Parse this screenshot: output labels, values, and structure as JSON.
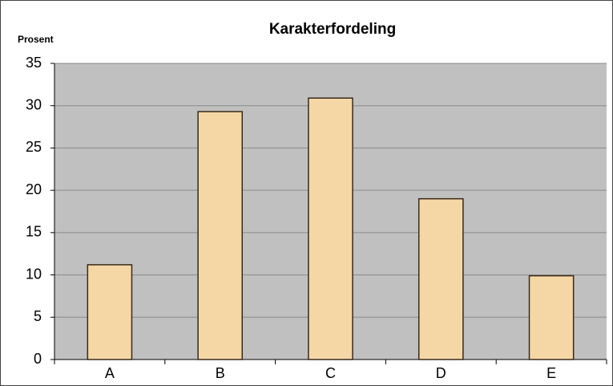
{
  "chart_data": {
    "type": "bar",
    "title": "Karakterfordeling",
    "y_label": "Prosent",
    "categories": [
      "A",
      "B",
      "C",
      "D",
      "E"
    ],
    "values": [
      11.2,
      29.3,
      30.9,
      19.0,
      9.9
    ],
    "color": "#f5d7a6",
    "ylim": [
      0,
      35
    ],
    "yticks": [
      0,
      5,
      10,
      15,
      20,
      25,
      30,
      35
    ],
    "grid": true
  }
}
